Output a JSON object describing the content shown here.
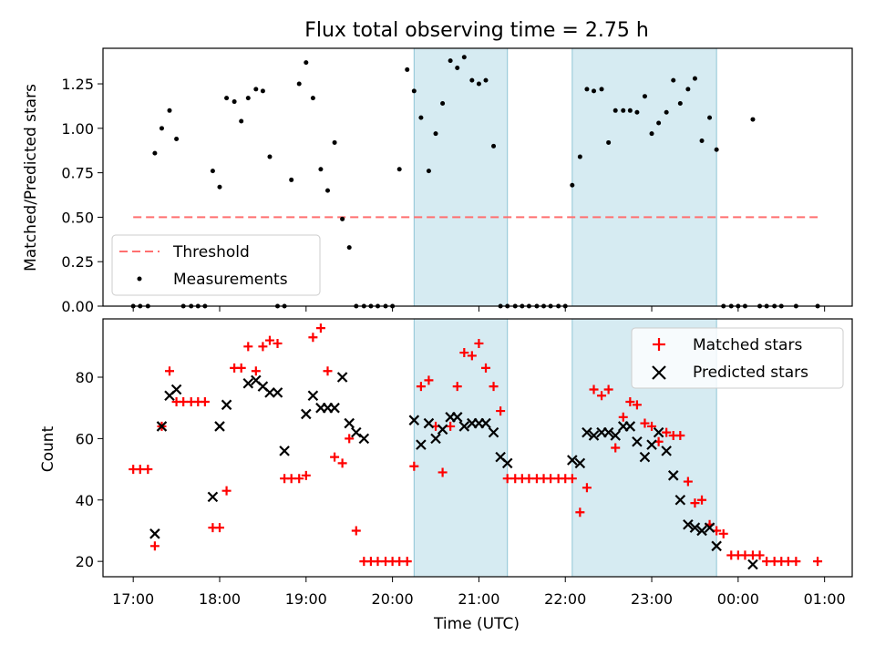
{
  "title": "Flux total observing time = 2.75 h",
  "chart_data": [
    {
      "type": "scatter",
      "panel": "top",
      "ylabel": "Matched/Predicted stars",
      "ylim": [
        0,
        1.45
      ],
      "yticks": [
        0.0,
        0.25,
        0.5,
        0.75,
        1.0,
        1.25
      ],
      "ytick_labels": [
        "0.00",
        "0.25",
        "0.50",
        "0.75",
        "1.00",
        "1.25"
      ],
      "threshold": {
        "name": "Threshold",
        "value": 0.5,
        "x_start": 17.0,
        "x_end": 24.92,
        "color": "#ff6f6f"
      },
      "series": [
        {
          "name": "Measurements",
          "color": "#000000",
          "x": [
            17.0,
            17.08,
            17.17,
            17.25,
            17.33,
            17.42,
            17.5,
            17.58,
            17.67,
            17.75,
            17.83,
            17.92,
            18.0,
            18.08,
            18.17,
            18.25,
            18.33,
            18.42,
            18.5,
            18.58,
            18.67,
            18.75,
            18.83,
            18.92,
            19.0,
            19.08,
            19.17,
            19.25,
            19.33,
            19.42,
            19.5,
            19.58,
            19.67,
            19.75,
            19.83,
            19.92,
            20.0,
            20.08,
            20.17,
            20.25,
            20.33,
            20.42,
            20.5,
            20.58,
            20.67,
            20.75,
            20.83,
            20.92,
            21.0,
            21.08,
            21.17,
            21.25,
            21.33,
            21.42,
            21.5,
            21.58,
            21.67,
            21.75,
            21.83,
            21.92,
            22.0,
            22.08,
            22.17,
            22.25,
            22.33,
            22.42,
            22.5,
            22.58,
            22.67,
            22.75,
            22.83,
            22.92,
            23.0,
            23.08,
            23.17,
            23.25,
            23.33,
            23.42,
            23.5,
            23.58,
            23.67,
            23.75,
            23.83,
            23.92,
            24.0,
            24.08,
            24.17,
            24.25,
            24.33,
            24.42,
            24.5,
            24.67,
            24.92
          ],
          "y": [
            0,
            0,
            0,
            0.86,
            1.0,
            1.1,
            0.94,
            0,
            0,
            0,
            0,
            0.76,
            0.67,
            1.17,
            1.15,
            1.04,
            1.17,
            1.22,
            1.21,
            0.84,
            0,
            0,
            0.71,
            1.25,
            1.37,
            1.17,
            0.77,
            0.65,
            0.92,
            0.49,
            0.33,
            0,
            0,
            0,
            0,
            0,
            0,
            0.77,
            1.33,
            1.21,
            1.06,
            0.76,
            0.97,
            1.14,
            1.38,
            1.34,
            1.4,
            1.27,
            1.25,
            1.27,
            0.9,
            0,
            0,
            0,
            0,
            0,
            0,
            0,
            0,
            0,
            0,
            0.68,
            0.84,
            1.22,
            1.21,
            1.22,
            0.92,
            1.1,
            1.1,
            1.1,
            1.09,
            1.18,
            0.97,
            1.03,
            1.09,
            1.27,
            1.14,
            1.22,
            1.28,
            0.93,
            1.06,
            0.88,
            0,
            0,
            0,
            0,
            1.05,
            0,
            0,
            0,
            0,
            0,
            0
          ]
        }
      ],
      "legend": {
        "position": "lower left",
        "entries": [
          "Threshold",
          "Measurements"
        ]
      }
    },
    {
      "type": "scatter",
      "panel": "bottom",
      "xlabel": "Time (UTC)",
      "ylabel": "Count",
      "ylim": [
        15,
        99
      ],
      "yticks": [
        20,
        40,
        60,
        80
      ],
      "ytick_labels": [
        "20",
        "40",
        "60",
        "80"
      ],
      "xlim": [
        16.65,
        25.32
      ],
      "xticks": [
        17,
        18,
        19,
        20,
        21,
        22,
        23,
        24,
        25
      ],
      "xtick_labels": [
        "17:00",
        "18:00",
        "19:00",
        "20:00",
        "21:00",
        "22:00",
        "23:00",
        "00:00",
        "01:00"
      ],
      "series": [
        {
          "name": "Matched stars",
          "marker": "+",
          "color": "#ff0000",
          "x": [
            17.0,
            17.08,
            17.17,
            17.25,
            17.33,
            17.42,
            17.5,
            17.58,
            17.67,
            17.75,
            17.83,
            17.92,
            18.0,
            18.08,
            18.17,
            18.25,
            18.33,
            18.42,
            18.5,
            18.58,
            18.67,
            18.75,
            18.83,
            18.92,
            19.0,
            19.08,
            19.17,
            19.25,
            19.33,
            19.42,
            19.5,
            19.58,
            19.67,
            19.75,
            19.83,
            19.92,
            20.0,
            20.08,
            20.17,
            20.25,
            20.33,
            20.42,
            20.5,
            20.58,
            20.67,
            20.75,
            20.83,
            20.92,
            21.0,
            21.08,
            21.17,
            21.25,
            21.33,
            21.42,
            21.5,
            21.58,
            21.67,
            21.75,
            21.83,
            21.92,
            22.0,
            22.08,
            22.17,
            22.25,
            22.33,
            22.42,
            22.5,
            22.58,
            22.67,
            22.75,
            22.83,
            22.92,
            23.0,
            23.08,
            23.17,
            23.25,
            23.33,
            23.42,
            23.5,
            23.58,
            23.67,
            23.75,
            23.83,
            23.92,
            24.0,
            24.08,
            24.17,
            24.25,
            24.33,
            24.42,
            24.5,
            24.58,
            24.67,
            24.92
          ],
          "y": [
            50,
            50,
            50,
            25,
            64,
            82,
            72,
            72,
            72,
            72,
            72,
            31,
            31,
            43,
            83,
            83,
            90,
            82,
            90,
            92,
            91,
            47,
            47,
            47,
            48,
            93,
            96,
            82,
            54,
            52,
            60,
            30,
            20,
            20,
            20,
            20,
            20,
            20,
            20,
            51,
            77,
            79,
            64,
            49,
            64,
            77,
            88,
            87,
            91,
            83,
            77,
            69,
            47,
            47,
            47,
            47,
            47,
            47,
            47,
            47,
            47,
            47,
            36,
            44,
            76,
            74,
            76,
            57,
            67,
            72,
            71,
            65,
            64,
            59,
            62,
            61,
            61,
            46,
            39,
            40,
            32,
            30,
            29,
            22,
            22,
            22,
            22,
            22,
            20,
            20,
            20,
            20,
            20,
            20
          ]
        },
        {
          "name": "Predicted stars",
          "marker": "x",
          "color": "#000000",
          "x": [
            17.25,
            17.33,
            17.42,
            17.5,
            17.92,
            18.0,
            18.08,
            18.33,
            18.42,
            18.5,
            18.58,
            18.67,
            18.75,
            19.0,
            19.08,
            19.17,
            19.25,
            19.33,
            19.42,
            19.5,
            19.58,
            19.67,
            20.25,
            20.33,
            20.42,
            20.5,
            20.58,
            20.67,
            20.75,
            20.83,
            20.92,
            21.0,
            21.08,
            21.17,
            21.25,
            21.33,
            22.08,
            22.17,
            22.25,
            22.33,
            22.42,
            22.5,
            22.58,
            22.67,
            22.75,
            22.83,
            22.92,
            23.0,
            23.08,
            23.17,
            23.25,
            23.33,
            23.42,
            23.5,
            23.58,
            23.67,
            23.75,
            24.17
          ],
          "y": [
            29,
            64,
            74,
            76,
            41,
            64,
            71,
            78,
            79,
            77,
            75,
            75,
            56,
            68,
            74,
            70,
            70,
            70,
            80,
            65,
            62,
            60,
            66,
            58,
            65,
            60,
            63,
            67,
            67,
            64,
            65,
            65,
            65,
            62,
            54,
            52,
            53,
            52,
            62,
            61,
            62,
            62,
            61,
            64,
            64,
            59,
            54,
            58,
            62,
            56,
            48,
            40,
            32,
            31,
            30,
            31,
            25,
            19
          ]
        }
      ],
      "legend": {
        "position": "upper right",
        "entries": [
          "Matched stars",
          "Predicted stars"
        ]
      }
    }
  ],
  "observing_windows": [
    {
      "start": 20.25,
      "end": 21.33
    },
    {
      "start": 22.08,
      "end": 23.75
    }
  ],
  "colors": {
    "window_fill": "#add8e6",
    "threshold": "#ff6f6f",
    "matched": "#ff0000",
    "predicted": "#000000",
    "measurements": "#000000"
  }
}
